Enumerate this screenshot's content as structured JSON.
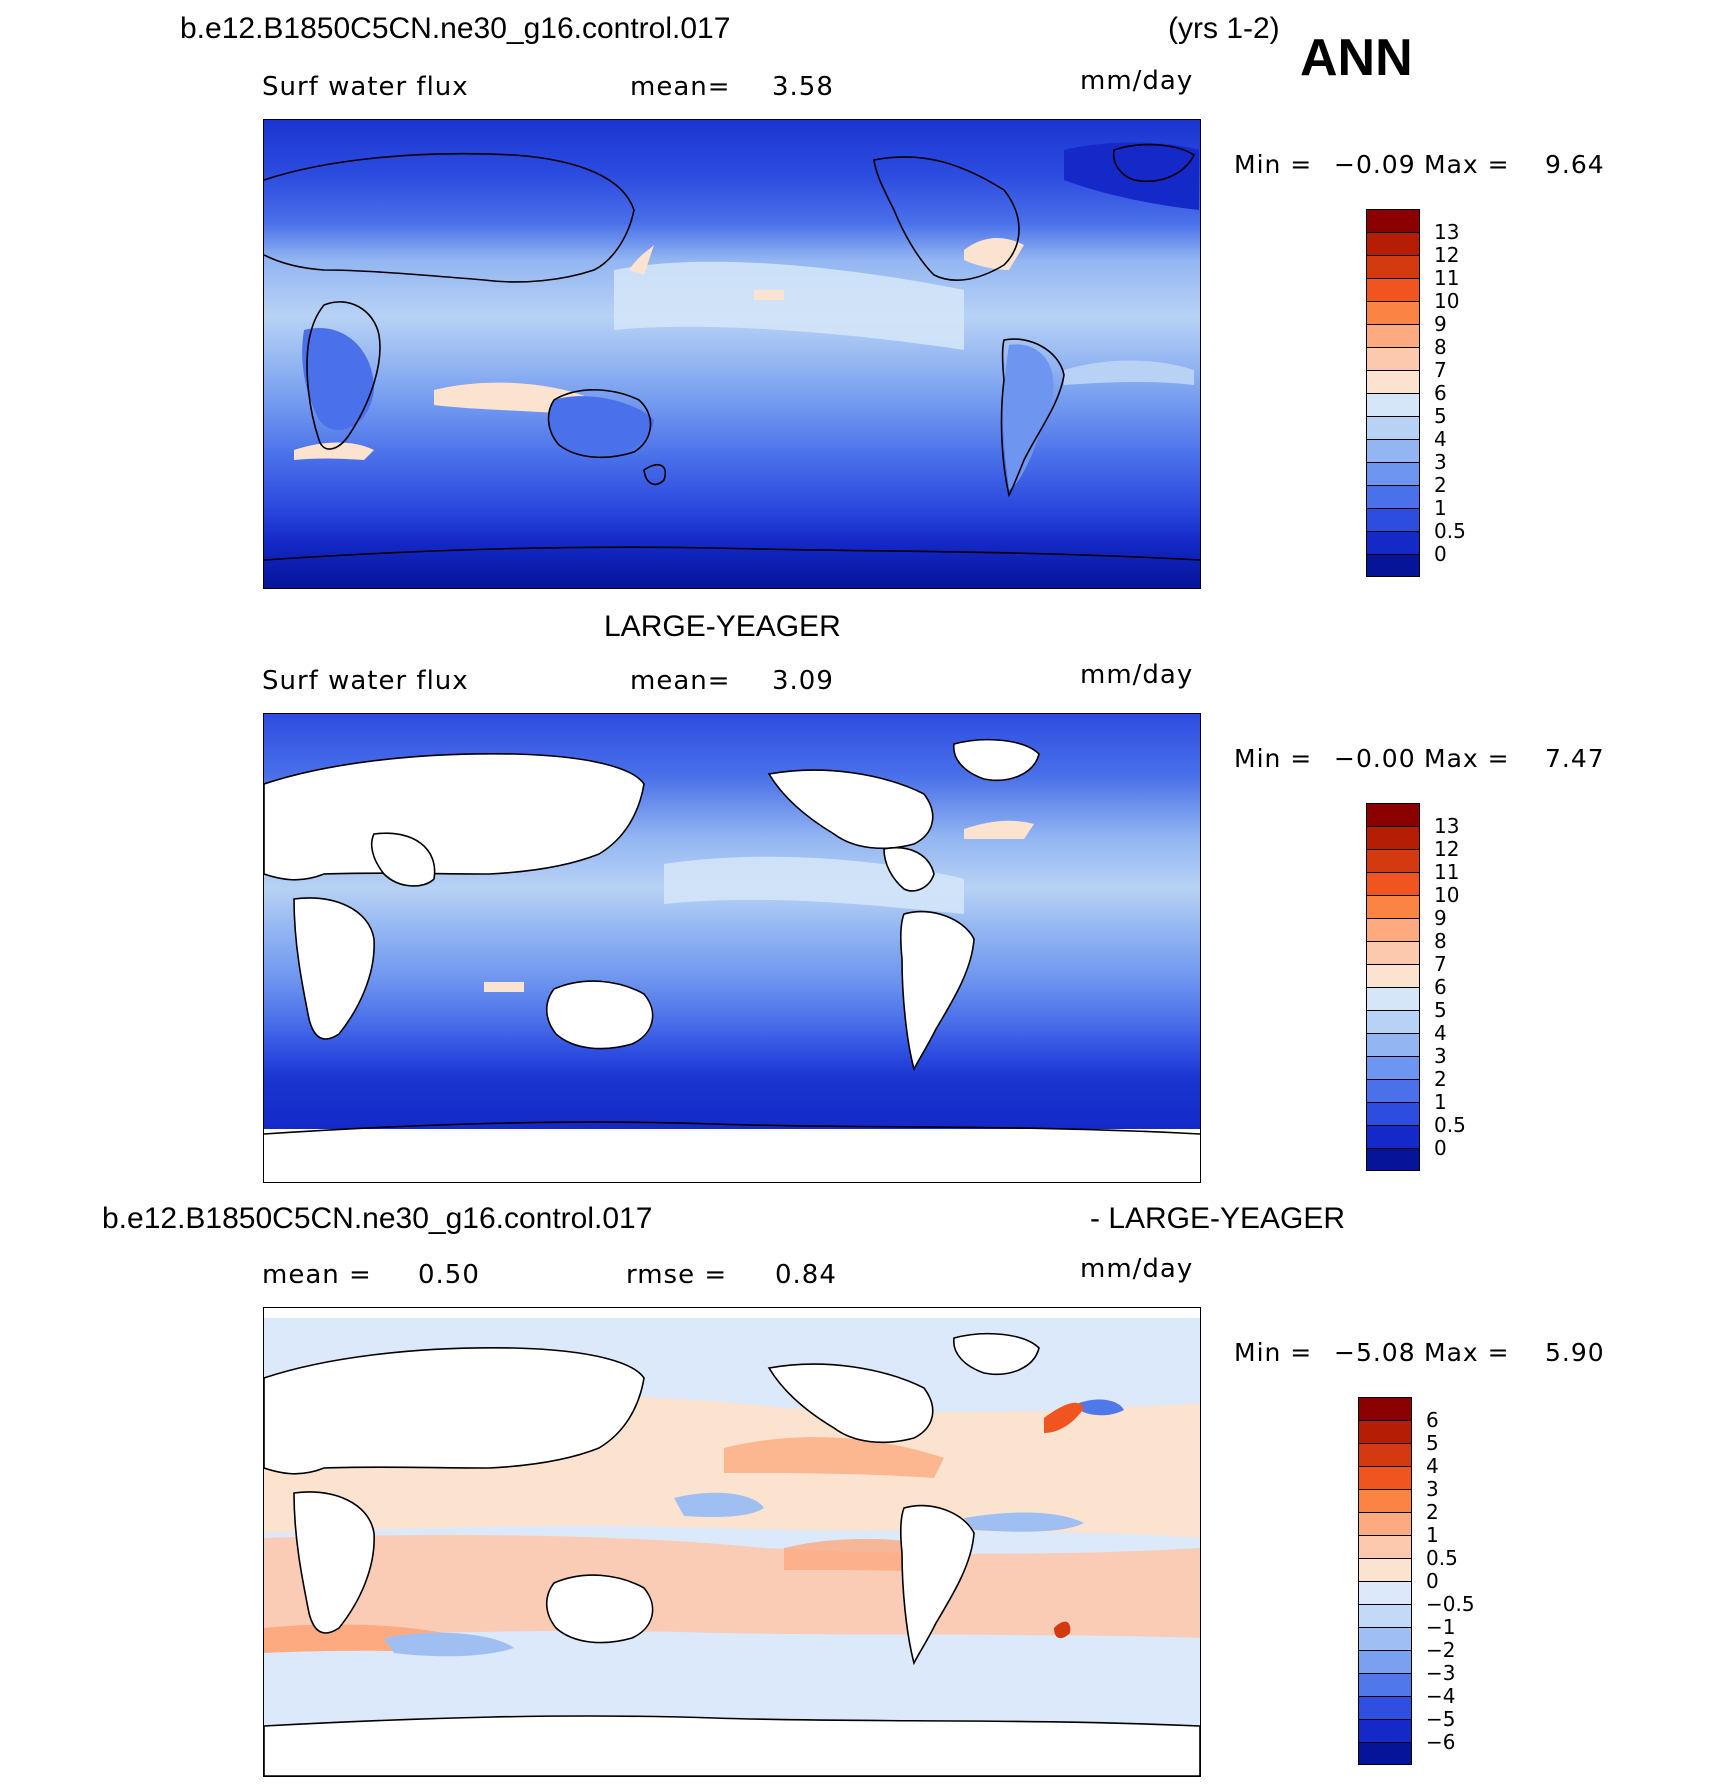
{
  "header": {
    "case_name": "b.e12.B1850C5CN.ne30_g16.control.017",
    "years": "(yrs 1-2)",
    "season": "ANN"
  },
  "panels": [
    {
      "id": "model",
      "above_title": "",
      "left_label": "Surf water flux",
      "mid_label": "mean=",
      "mid_value": "3.58",
      "units": "mm/day",
      "min_label": "Min =",
      "min_value": "−0.09",
      "max_label": "Max =",
      "max_value": "9.64",
      "ticks": [
        "13",
        "12",
        "11",
        "10",
        "9",
        "8",
        "7",
        "6",
        "5",
        "4",
        "3",
        "2",
        "1",
        "0.5",
        "0"
      ],
      "colors": [
        "#8b0000",
        "#b51e05",
        "#d33a10",
        "#f0551f",
        "#fb8444",
        "#fdaa80",
        "#fdc9ae",
        "#fbe3d0",
        "#d5e6f8",
        "#b8d2f5",
        "#93b6f2",
        "#6e95ef",
        "#4a70ea",
        "#2d4ce0",
        "#1429c8",
        "#061499"
      ]
    },
    {
      "id": "obs",
      "above_title": "LARGE-YEAGER",
      "left_label": "Surf water flux",
      "mid_label": "mean=",
      "mid_value": "3.09",
      "units": "mm/day",
      "min_label": "Min =",
      "min_value": "−0.00",
      "max_label": "Max =",
      "max_value": "7.47",
      "ticks": [
        "13",
        "12",
        "11",
        "10",
        "9",
        "8",
        "7",
        "6",
        "5",
        "4",
        "3",
        "2",
        "1",
        "0.5",
        "0"
      ],
      "colors": [
        "#8b0000",
        "#b51e05",
        "#d33a10",
        "#f0551f",
        "#fb8444",
        "#fdaa80",
        "#fdc9ae",
        "#fbe3d0",
        "#d5e6f8",
        "#b8d2f5",
        "#93b6f2",
        "#6e95ef",
        "#4a70ea",
        "#2d4ce0",
        "#1429c8",
        "#061499"
      ]
    },
    {
      "id": "diff",
      "above_title_left": "b.e12.B1850C5CN.ne30_g16.control.017",
      "above_title_right": "- LARGE-YEAGER",
      "left_label": "mean =",
      "left_value": "0.50",
      "mid_label": "rmse =",
      "mid_value": "0.84",
      "units": "mm/day",
      "min_label": "Min =",
      "min_value": "−5.08",
      "max_label": "Max =",
      "max_value": "5.90",
      "ticks": [
        "6",
        "5",
        "4",
        "3",
        "2",
        "1",
        "0.5",
        "0",
        "−0.5",
        "−1",
        "−2",
        "−3",
        "−4",
        "−5",
        "−6"
      ],
      "colors": [
        "#8b0000",
        "#b51e05",
        "#d33a10",
        "#f0551f",
        "#fb8444",
        "#fdaa80",
        "#fdc9ae",
        "#fbe3d0",
        "#dbe9fa",
        "#c2d9f7",
        "#9fbff3",
        "#7aa0ef",
        "#5178ea",
        "#2e4fe0",
        "#1429c8",
        "#061499"
      ]
    }
  ]
}
